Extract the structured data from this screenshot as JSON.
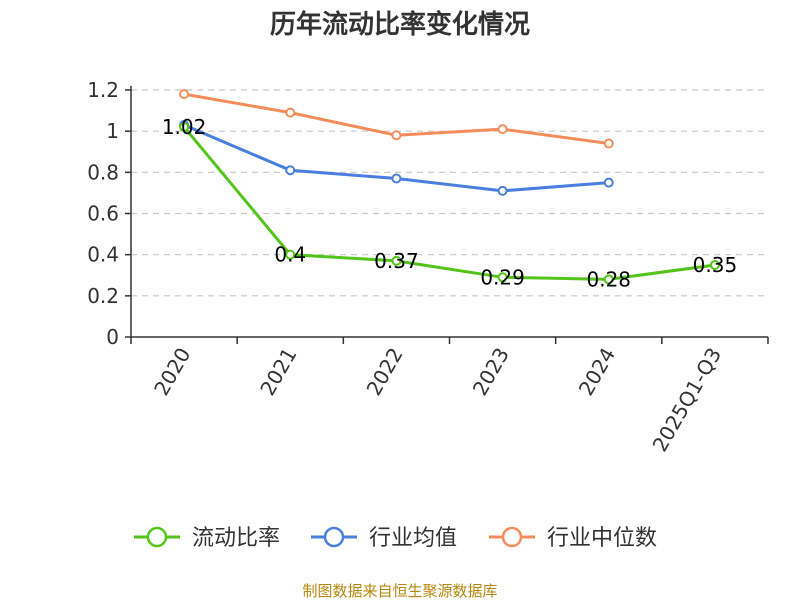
{
  "chart_data": {
    "type": "line",
    "title": "历年流动比率变化情况",
    "categories": [
      "2020",
      "2021",
      "2022",
      "2023",
      "2024",
      "2025Q1-Q3"
    ],
    "ylim": [
      0,
      1.2
    ],
    "yticks": [
      "0",
      "0.2",
      "0.4",
      "0.6",
      "0.8",
      "1",
      "1.2"
    ],
    "xlabel": "",
    "ylabel": "",
    "grid": true,
    "legend_position": "bottom",
    "series": [
      {
        "name": "流动比率",
        "color": "#52c41a",
        "values": [
          1.02,
          0.4,
          0.37,
          0.29,
          0.28,
          0.35
        ],
        "labels": [
          "1.02",
          "0.4",
          "0.37",
          "0.29",
          "0.28",
          "0.35"
        ]
      },
      {
        "name": "行业均值",
        "color": "#4a7fe0",
        "values": [
          1.03,
          0.81,
          0.77,
          0.71,
          0.75,
          null
        ]
      },
      {
        "name": "行业中位数",
        "color": "#f58d5b",
        "values": [
          1.18,
          1.09,
          0.98,
          1.01,
          0.94,
          null
        ]
      }
    ]
  },
  "source": {
    "text": "制图数据来自恒生聚源数据库",
    "color": "#b8860b"
  }
}
